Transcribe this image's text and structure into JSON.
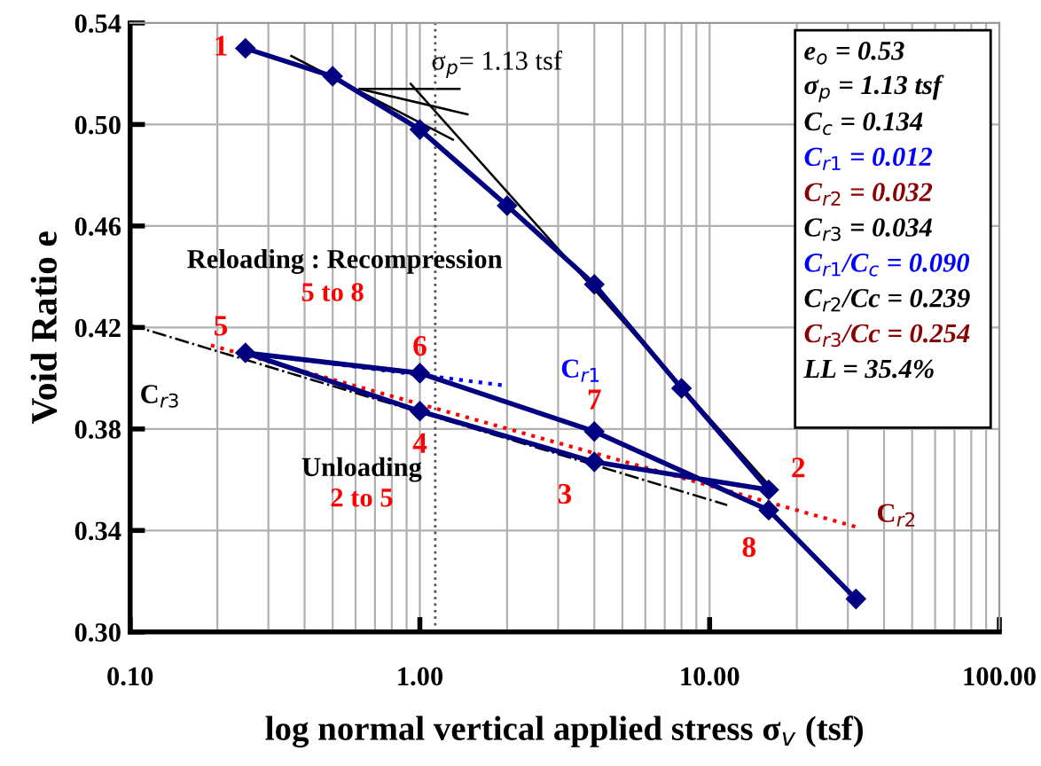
{
  "chart_data": {
    "type": "line",
    "xlabel": "log normal vertical applied stress σ$_{v}$ (tsf)",
    "ylabel": "Void Ratio e",
    "log": "x",
    "xlim": [
      0.1,
      100
    ],
    "xticks": [
      {
        "value": 0.1,
        "label": "0.10"
      },
      {
        "value": 1,
        "label": "1.00"
      },
      {
        "value": 10,
        "label": "10.00"
      },
      {
        "value": 100,
        "label": "100.00"
      }
    ],
    "ylim": [
      0.3,
      0.54
    ],
    "yticks": [
      {
        "value": 0.3,
        "label": "0.30"
      },
      {
        "value": 0.34,
        "label": "0.34"
      },
      {
        "value": 0.38,
        "label": "0.38"
      },
      {
        "value": 0.42,
        "label": "0.42"
      },
      {
        "value": 0.46,
        "label": "0.46"
      },
      {
        "value": 0.5,
        "label": "0.50"
      },
      {
        "value": 0.54,
        "label": "0.54"
      }
    ],
    "grid": true,
    "series": [
      {
        "color": "#000080",
        "marker": "diamond",
        "line_style": "solid",
        "x": [
          0.25,
          0.5,
          1,
          2,
          4,
          8,
          16,
          4,
          1,
          0.25,
          1,
          4,
          16,
          32
        ],
        "values": [
          0.53,
          0.519,
          0.498,
          0.468,
          0.437,
          0.396,
          0.356,
          0.367,
          0.387,
          0.41,
          0.402,
          0.379,
          0.348,
          0.313
        ]
      },
      {
        "color": "#0000ff",
        "marker": "none",
        "line_style": "dotted",
        "x": [
          0.25,
          2
        ],
        "values": [
          0.41,
          0.397
        ]
      },
      {
        "color": "#ff0000",
        "marker": "none",
        "line_style": "dotted",
        "x": [
          0.19,
          33
        ],
        "values": [
          0.413,
          0.341
        ]
      },
      {
        "color": "#000000",
        "marker": "none",
        "line_style": "dashdot",
        "x": [
          0.1,
          11.5
        ],
        "values": [
          0.421,
          0.35
        ]
      },
      {
        "color": "#000000",
        "marker": "none",
        "line_style": "solid",
        "x": [
          0.62,
          1.37
        ],
        "values": [
          0.514,
          0.514
        ]
      },
      {
        "color": "#000000",
        "marker": "none",
        "line_style": "solid",
        "x": [
          0.36,
          1.3
        ],
        "values": [
          0.527,
          0.494
        ]
      },
      {
        "color": "#000000",
        "marker": "none",
        "line_style": "solid",
        "x": [
          0.62,
          1.46
        ],
        "values": [
          0.514,
          0.504
        ]
      },
      {
        "color": "#000000",
        "marker": "none",
        "line_style": "solid",
        "x": [
          0.93,
          16
        ],
        "values": [
          0.516,
          0.358
        ]
      }
    ],
    "ref_lines": [
      {
        "axis": "x",
        "value": 1.13,
        "color": "#555555",
        "line_style": "dotted"
      }
    ],
    "annotations": [
      {
        "text": "1",
        "x": 0.25,
        "y": 0.53
      },
      {
        "text": "2",
        "x": 16,
        "y": 0.356
      },
      {
        "text": "3",
        "x": 4,
        "y": 0.367
      },
      {
        "text": "4",
        "x": 1,
        "y": 0.387
      },
      {
        "text": "5",
        "x": 0.25,
        "y": 0.41
      },
      {
        "text": "6",
        "x": 1,
        "y": 0.402
      },
      {
        "text": "7",
        "x": 4,
        "y": 0.379
      },
      {
        "text": "8",
        "x": 16,
        "y": 0.348
      },
      {
        "text": "σ$_{p}$= 1.13 tsf",
        "x": 1.13,
        "y": 0.514
      },
      "Reloading : Recompression",
      "5 to 8",
      "Unloading",
      "2 to 5",
      {
        "text": "C$_{r1}$",
        "x": 2,
        "y": 0.397
      },
      {
        "text": "C$_{r2}$",
        "x": 33,
        "y": 0.341
      },
      {
        "text": "C$_{r3}$",
        "x": 0.14,
        "y": 0.417
      },
      "e$_{o}$ = 0.53",
      "σ$_{p}$ = 1.13 tsf",
      "C$_{c}$ = 0.134",
      "C$_{r1}$ = 0.012",
      "C$_{r2}$ = 0.032",
      "C$_{r3}$ = 0.034",
      "C$_{r1}$/C$_{c}$ = 0.090",
      "C$_{r2}$/Cc = 0.239",
      "C$_{r3}$/Cc = 0.254",
      "LL = 35.4%"
    ]
  }
}
